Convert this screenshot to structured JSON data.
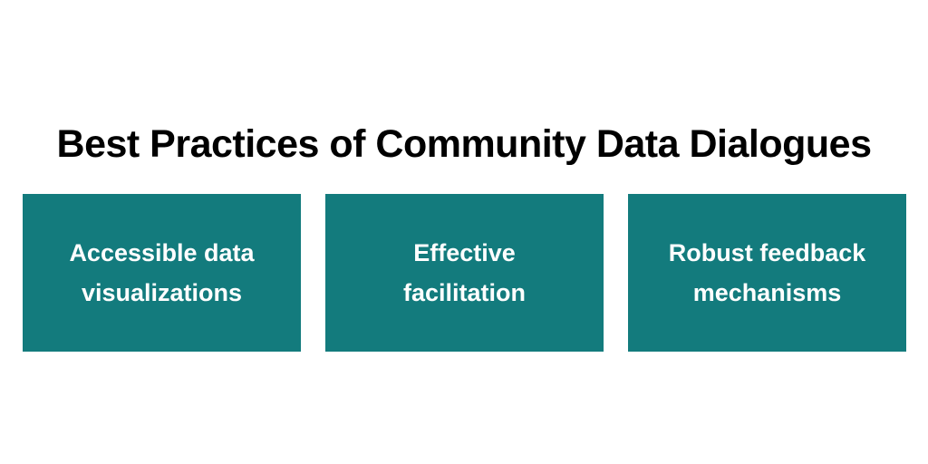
{
  "title": "Best Practices of Community Data Dialogues",
  "colors": {
    "card_background": "#137b7d",
    "card_text": "#ffffff",
    "title_text": "#000000",
    "page_background": "#ffffff"
  },
  "cards": [
    {
      "label": "Accessible data visualizations"
    },
    {
      "label": "Effective facilitation"
    },
    {
      "label": "Robust feedback mechanisms"
    }
  ]
}
